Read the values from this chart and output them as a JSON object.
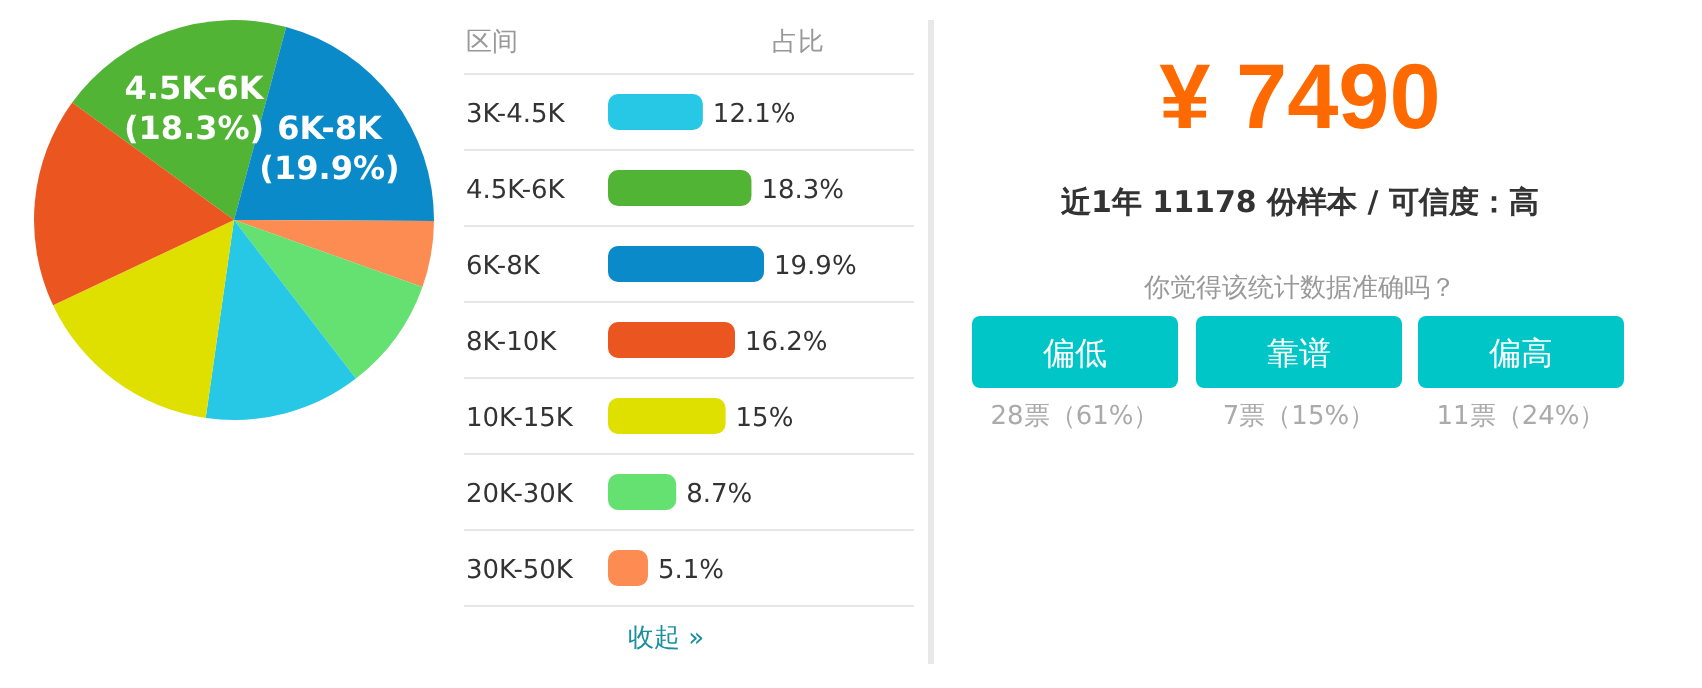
{
  "chart_data": [
    {
      "type": "pie",
      "categories": [
        "4.5K-6K",
        "6K-8K",
        null,
        null,
        null,
        null,
        null
      ],
      "values": [
        18.3,
        19.9,
        5.1,
        8.7,
        12.1,
        15,
        16.2
      ],
      "colors": [
        "#52b435",
        "#0a8ac8",
        "#fc8c52",
        "#64e170",
        "#26c8e6",
        "#dfe000",
        "#ea5520"
      ],
      "value_labels": [
        "(18.3%)",
        "(19.9%)",
        null,
        null,
        null,
        null,
        null
      ]
    },
    {
      "type": "bar",
      "orientation": "horizontal",
      "ylabel": "区间",
      "xlabel": "占比",
      "categories": [
        "3K-4.5K",
        "4.5K-6K",
        "6K-8K",
        "8K-10K",
        "10K-15K",
        "20K-30K",
        "30K-50K"
      ],
      "values": [
        12.1,
        18.3,
        19.9,
        16.2,
        15,
        8.7,
        5.1
      ],
      "colors": [
        "#26c8e6",
        "#52b435",
        "#0a8ac8",
        "#ea5520",
        "#dfe000",
        "#64e170",
        "#fc8c52"
      ],
      "value_labels": [
        "12.1%",
        "18.3%",
        "19.9%",
        "16.2%",
        "15%",
        "8.7%",
        "5.1%"
      ],
      "annotations": [
        "收起 »"
      ]
    },
    {
      "type": "other",
      "title": "¥ 7490",
      "subtitle": "近1年 11178 份样本 / 可信度：高",
      "annotations": [
        "你觉得该统计数据准确吗？",
        "偏低",
        "靠谱",
        "偏高",
        "28票（61%）",
        "7票（15%）",
        "11票（24%）"
      ]
    }
  ]
}
